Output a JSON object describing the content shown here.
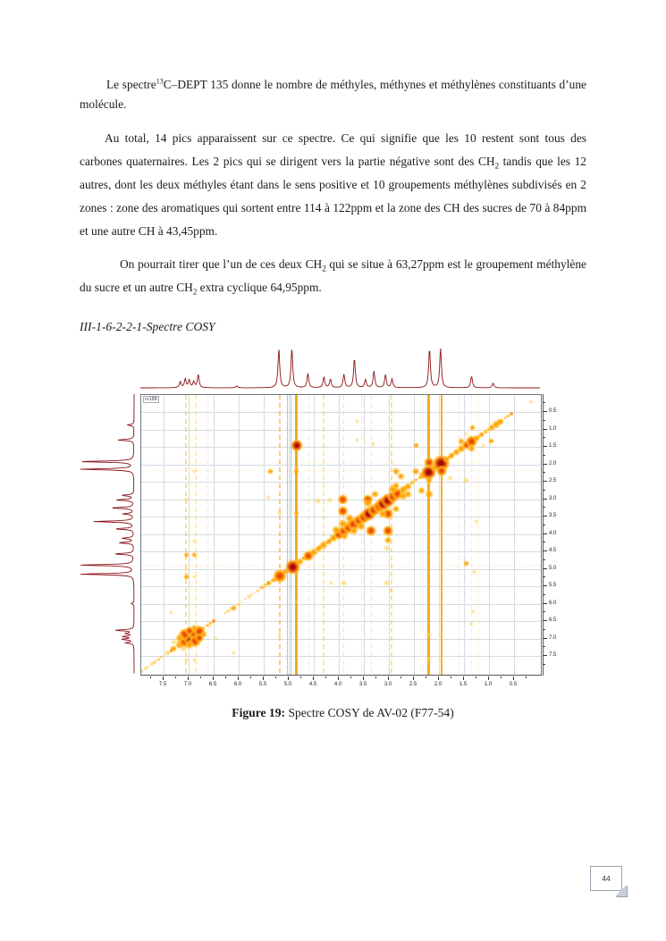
{
  "page": {
    "number": "44"
  },
  "section_heading": "III-1-6-2-2-1-Spectre COSY",
  "caption": {
    "label": "Figure 19:",
    "text": " Spectre COSY de AV-02 (F77-54)"
  },
  "paragraphs": [
    {
      "segments": [
        {
          "t": "Le spectre"
        },
        {
          "sup": "13"
        },
        {
          "t": "C–DEPT 135 donne le nombre de méthyles, méthynes et méthylènes constituants d’une molécule."
        }
      ]
    },
    {
      "segments": [
        {
          "t": "Au total, 14 pics apparaissent sur ce spectre. Ce qui signifie que les 10 restent sont tous des carbones quaternaires. Les 2 pics qui se dirigent vers la partie négative sont des CH"
        },
        {
          "sub": "2"
        },
        {
          "t": " tandis que les 12 autres, dont les deux méthyles étant dans le sens positive et 10 groupements méthylènes subdivisés en 2 zones : zone des aromatiques qui sortent entre 114 à 122ppm et la zone des CH des sucres de 70 à 84ppm et une autre CH à 43,45ppm."
        }
      ]
    },
    {
      "segments": [
        {
          "t": "On pourrait tirer que l’un de ces deux CH"
        },
        {
          "sub": "2"
        },
        {
          "t": " qui se situe à 63,27ppm est le groupement méthylène du sucre et un autre CH"
        },
        {
          "sub": "2"
        },
        {
          "t": " extra cyclique 64,95ppm."
        }
      ]
    }
  ],
  "chart_data": {
    "type": "heatmap",
    "title": "Spectre COSY de AV-02 (F77-54)",
    "inset_label": "rs188",
    "x_axis": {
      "unit": "ppm",
      "range": [
        7.95,
        -0.05
      ],
      "ticks": [
        "7.5",
        "7.0",
        "6.5",
        "6.0",
        "5.5",
        "5.0",
        "4.5",
        "4.0",
        "3.5",
        "3.0",
        "2.5",
        "2.0",
        "1.5",
        "1.0",
        "0.5"
      ]
    },
    "y_axis": {
      "unit": "ppm",
      "range": [
        0.0,
        8.03
      ],
      "ticks": [
        "0.5",
        "1.0",
        "1.5",
        "2.0",
        "2.5",
        "3.0",
        "3.5",
        "4.0",
        "4.5",
        "5.0",
        "5.5",
        "6.0",
        "6.5",
        "7.0",
        "7.5"
      ]
    },
    "grid": true,
    "spectrum_1d_peaks": [
      [
        7.15,
        0.16
      ],
      [
        7.05,
        0.22
      ],
      [
        6.97,
        0.2
      ],
      [
        6.88,
        0.15
      ],
      [
        6.79,
        0.34
      ],
      [
        6.02,
        0.05
      ],
      [
        5.18,
        1.0
      ],
      [
        4.92,
        1.0
      ],
      [
        4.6,
        0.36
      ],
      [
        4.28,
        0.27
      ],
      [
        4.15,
        0.22
      ],
      [
        3.88,
        0.34
      ],
      [
        3.67,
        0.75
      ],
      [
        3.45,
        0.2
      ],
      [
        3.28,
        0.42
      ],
      [
        3.05,
        0.33
      ],
      [
        2.92,
        0.22
      ],
      [
        2.17,
        1.0
      ],
      [
        1.95,
        1.0
      ],
      [
        1.33,
        0.3
      ],
      [
        0.9,
        0.12
      ]
    ],
    "diagonal_segments": [
      [
        0.55,
        1.8,
        0.75
      ],
      [
        1.8,
        2.55,
        0.85
      ],
      [
        2.55,
        4.75,
        0.85
      ],
      [
        4.75,
        5.55,
        0.6
      ],
      [
        5.55,
        5.9,
        0.3
      ],
      [
        5.95,
        6.3,
        0.35
      ],
      [
        6.5,
        7.35,
        0.8
      ],
      [
        7.35,
        7.95,
        0.35
      ]
    ],
    "streaks": [
      [
        7.05,
        1.5,
        0.45,
        1
      ],
      [
        6.85,
        1.5,
        0.5,
        1
      ],
      [
        6.62,
        1,
        0.25,
        1
      ],
      [
        5.18,
        2,
        0.6,
        1
      ],
      [
        4.85,
        3,
        0.95,
        0
      ],
      [
        4.6,
        1.5,
        0.3,
        1
      ],
      [
        4.3,
        1.5,
        0.35,
        1
      ],
      [
        3.9,
        1.5,
        0.4,
        1
      ],
      [
        3.55,
        1,
        0.25,
        1
      ],
      [
        3.35,
        1.5,
        0.35,
        1
      ],
      [
        2.95,
        1.5,
        0.4,
        1
      ],
      [
        2.2,
        3,
        0.95,
        0
      ],
      [
        1.95,
        2.5,
        0.9,
        0
      ],
      [
        1.59,
        1,
        0.25,
        1
      ],
      [
        1.35,
        1,
        0.22,
        1
      ],
      [
        1.2,
        1,
        0.18,
        1
      ]
    ],
    "gray_lines": [
      5.03,
      4.96
    ],
    "noise_rows": [
      [
        4.9,
        0.12
      ],
      [
        2.2,
        0.1
      ],
      [
        1.95,
        0.08
      ]
    ],
    "cross_peaks": [
      [
        7.18,
        7.18,
        6,
        1
      ],
      [
        7.08,
        7.08,
        9,
        2
      ],
      [
        6.98,
        6.98,
        10,
        3
      ],
      [
        6.88,
        6.88,
        9,
        2
      ],
      [
        6.79,
        6.8,
        8,
        2
      ],
      [
        7.08,
        6.88,
        8,
        2
      ],
      [
        6.88,
        7.08,
        8,
        2
      ],
      [
        7.18,
        6.98,
        6,
        1
      ],
      [
        6.98,
        7.18,
        6,
        1
      ],
      [
        6.79,
        6.98,
        6,
        2
      ],
      [
        6.98,
        6.79,
        6,
        2
      ],
      [
        6.88,
        6.7,
        5,
        1
      ],
      [
        6.7,
        6.88,
        5,
        1
      ],
      [
        7.3,
        7.3,
        5,
        1
      ],
      [
        7.42,
        7.42,
        4,
        0
      ],
      [
        7.3,
        7.1,
        4,
        0
      ],
      [
        7.1,
        7.3,
        4,
        0
      ],
      [
        7.6,
        7.6,
        3,
        0
      ],
      [
        7.72,
        7.72,
        3,
        0
      ],
      [
        7.85,
        7.85,
        3,
        0
      ],
      [
        6.6,
        6.62,
        4,
        0
      ],
      [
        6.45,
        7.0,
        3,
        0
      ],
      [
        7.35,
        6.25,
        3,
        0
      ],
      [
        6.1,
        7.4,
        3,
        0
      ],
      [
        6.22,
        6.22,
        3,
        0
      ],
      [
        6.1,
        6.12,
        4,
        1
      ],
      [
        6.0,
        6.03,
        3,
        0
      ],
      [
        5.78,
        5.8,
        3,
        0
      ],
      [
        5.62,
        5.64,
        3,
        0
      ],
      [
        5.5,
        5.52,
        4,
        0
      ],
      [
        5.4,
        5.42,
        4,
        1
      ],
      [
        5.3,
        5.32,
        4,
        1
      ],
      [
        5.18,
        5.2,
        9,
        2
      ],
      [
        5.06,
        5.08,
        4,
        1
      ],
      [
        4.92,
        4.95,
        10,
        3
      ],
      [
        4.78,
        4.8,
        5,
        1
      ],
      [
        4.68,
        4.7,
        4,
        1
      ],
      [
        4.6,
        4.62,
        7,
        2
      ],
      [
        4.5,
        4.52,
        6,
        1
      ],
      [
        4.4,
        4.42,
        5,
        1
      ],
      [
        4.3,
        4.32,
        6,
        1
      ],
      [
        4.2,
        4.22,
        5,
        1
      ],
      [
        4.1,
        4.12,
        6,
        1
      ],
      [
        4.0,
        4.02,
        7,
        2
      ],
      [
        3.9,
        3.92,
        8,
        2
      ],
      [
        3.8,
        3.82,
        8,
        2
      ],
      [
        3.7,
        3.72,
        9,
        2
      ],
      [
        3.6,
        3.62,
        8,
        2
      ],
      [
        3.5,
        3.52,
        8,
        2
      ],
      [
        3.4,
        3.42,
        9,
        3
      ],
      [
        3.3,
        3.32,
        8,
        2
      ],
      [
        3.2,
        3.22,
        8,
        2
      ],
      [
        3.12,
        3.14,
        9,
        3
      ],
      [
        3.02,
        3.04,
        9,
        3
      ],
      [
        2.92,
        2.94,
        8,
        2
      ],
      [
        2.83,
        2.85,
        8,
        2
      ],
      [
        2.72,
        2.74,
        6,
        1
      ],
      [
        2.62,
        2.64,
        5,
        1
      ],
      [
        2.52,
        2.52,
        4,
        0
      ],
      [
        2.32,
        2.33,
        6,
        1
      ],
      [
        2.2,
        2.22,
        10,
        3
      ],
      [
        2.08,
        2.09,
        6,
        1
      ],
      [
        1.95,
        1.98,
        11,
        3
      ],
      [
        1.85,
        1.86,
        5,
        1
      ],
      [
        1.75,
        1.75,
        5,
        1
      ],
      [
        1.65,
        1.65,
        5,
        1
      ],
      [
        1.55,
        1.55,
        6,
        1
      ],
      [
        1.45,
        1.45,
        6,
        2
      ],
      [
        1.35,
        1.35,
        8,
        2
      ],
      [
        1.25,
        1.25,
        5,
        1
      ],
      [
        1.15,
        1.15,
        4,
        1
      ],
      [
        1.05,
        1.05,
        4,
        0
      ],
      [
        0.95,
        0.95,
        5,
        1
      ],
      [
        0.85,
        0.85,
        6,
        1
      ],
      [
        0.78,
        0.78,
        5,
        1
      ],
      [
        0.65,
        0.65,
        3,
        0
      ],
      [
        3.35,
        3.92,
        7,
        2
      ],
      [
        3.92,
        3.35,
        7,
        2
      ],
      [
        3.02,
        3.92,
        7,
        2
      ],
      [
        3.92,
        3.02,
        7,
        2
      ],
      [
        3.02,
        3.42,
        7,
        2
      ],
      [
        3.42,
        3.02,
        7,
        2
      ],
      [
        3.12,
        3.42,
        6,
        1
      ],
      [
        3.42,
        3.12,
        6,
        1
      ],
      [
        3.7,
        3.92,
        6,
        1
      ],
      [
        3.92,
        3.7,
        6,
        1
      ],
      [
        3.55,
        3.78,
        6,
        1
      ],
      [
        3.78,
        3.55,
        6,
        1
      ],
      [
        4.06,
        3.88,
        6,
        1
      ],
      [
        3.88,
        4.06,
        5,
        1
      ],
      [
        3.28,
        2.86,
        5,
        1
      ],
      [
        2.86,
        3.28,
        5,
        1
      ],
      [
        2.72,
        2.92,
        6,
        1
      ],
      [
        2.92,
        2.72,
        6,
        1
      ],
      [
        2.62,
        2.86,
        5,
        1
      ],
      [
        2.86,
        2.62,
        5,
        1
      ],
      [
        3.02,
        4.18,
        5,
        1
      ],
      [
        4.18,
        3.02,
        4,
        0
      ],
      [
        3.05,
        4.42,
        4,
        0
      ],
      [
        4.42,
        3.05,
        4,
        0
      ],
      [
        2.35,
        2.76,
        5,
        1
      ],
      [
        2.76,
        2.35,
        5,
        1
      ],
      [
        2.2,
        2.86,
        6,
        1
      ],
      [
        2.86,
        2.2,
        5,
        1
      ],
      [
        2.2,
        1.95,
        7,
        2
      ],
      [
        1.95,
        2.2,
        7,
        2
      ],
      [
        2.2,
        2.46,
        5,
        1
      ],
      [
        2.46,
        2.2,
        5,
        1
      ],
      [
        1.35,
        1.55,
        5,
        1
      ],
      [
        1.55,
        1.35,
        5,
        1
      ],
      [
        2.46,
        1.46,
        4,
        1
      ],
      [
        1.46,
        2.46,
        4,
        0
      ],
      [
        1.78,
        2.4,
        4,
        0
      ],
      [
        4.84,
        1.46,
        8,
        3
      ],
      [
        1.46,
        4.84,
        4,
        1
      ],
      [
        1.29,
        5.09,
        3,
        0
      ],
      [
        1.33,
        0.95,
        4,
        1
      ],
      [
        0.95,
        1.33,
        4,
        1
      ],
      [
        1.12,
        1.45,
        3,
        0
      ],
      [
        1.45,
        1.12,
        3,
        0
      ],
      [
        5.36,
        2.21,
        4,
        1
      ],
      [
        5.41,
        2.95,
        3,
        0
      ],
      [
        3.05,
        5.42,
        4,
        0
      ],
      [
        3.9,
        5.42,
        4,
        0
      ],
      [
        4.15,
        5.42,
        3,
        0
      ],
      [
        2.95,
        5.62,
        3,
        0
      ],
      [
        3.64,
        1.31,
        3,
        0
      ],
      [
        3.31,
        1.4,
        3,
        0
      ],
      [
        3.64,
        0.77,
        3,
        0
      ],
      [
        1.25,
        3.64,
        3,
        0
      ],
      [
        1.31,
        6.23,
        3,
        0
      ],
      [
        1.35,
        6.6,
        3,
        0
      ],
      [
        0.16,
        0.2,
        3,
        0
      ],
      [
        7.05,
        4.6,
        4,
        1
      ],
      [
        6.88,
        4.6,
        4,
        1
      ],
      [
        7.05,
        5.24,
        4,
        1
      ],
      [
        6.88,
        5.24,
        3,
        0
      ],
      [
        7.05,
        7.62,
        3,
        0
      ],
      [
        6.88,
        7.62,
        3,
        0
      ],
      [
        5.18,
        6.9,
        3,
        0
      ],
      [
        5.18,
        3.4,
        4,
        0
      ],
      [
        4.85,
        3.4,
        4,
        1
      ],
      [
        4.85,
        2.2,
        4,
        1
      ],
      [
        4.85,
        5.95,
        3,
        0
      ],
      [
        2.2,
        6.9,
        4,
        0
      ],
      [
        1.95,
        6.9,
        3,
        0
      ],
      [
        2.2,
        7.6,
        4,
        0
      ],
      [
        1.95,
        7.6,
        3,
        0
      ],
      [
        6.88,
        2.2,
        3,
        0
      ],
      [
        6.88,
        4.2,
        3,
        0
      ],
      [
        7.05,
        3.0,
        3,
        0
      ],
      [
        7.05,
        5.0,
        3,
        0
      ]
    ],
    "colors": {
      "trace": "#8b1216",
      "peak_faint": "#ffd24d",
      "peak_light": "#ff9d00",
      "peak_medium": "#e8490a",
      "peak_strong": "#9d0a0a",
      "streak": "#f3a60e",
      "grid": "#d7dade",
      "border": "#6e7781"
    }
  }
}
